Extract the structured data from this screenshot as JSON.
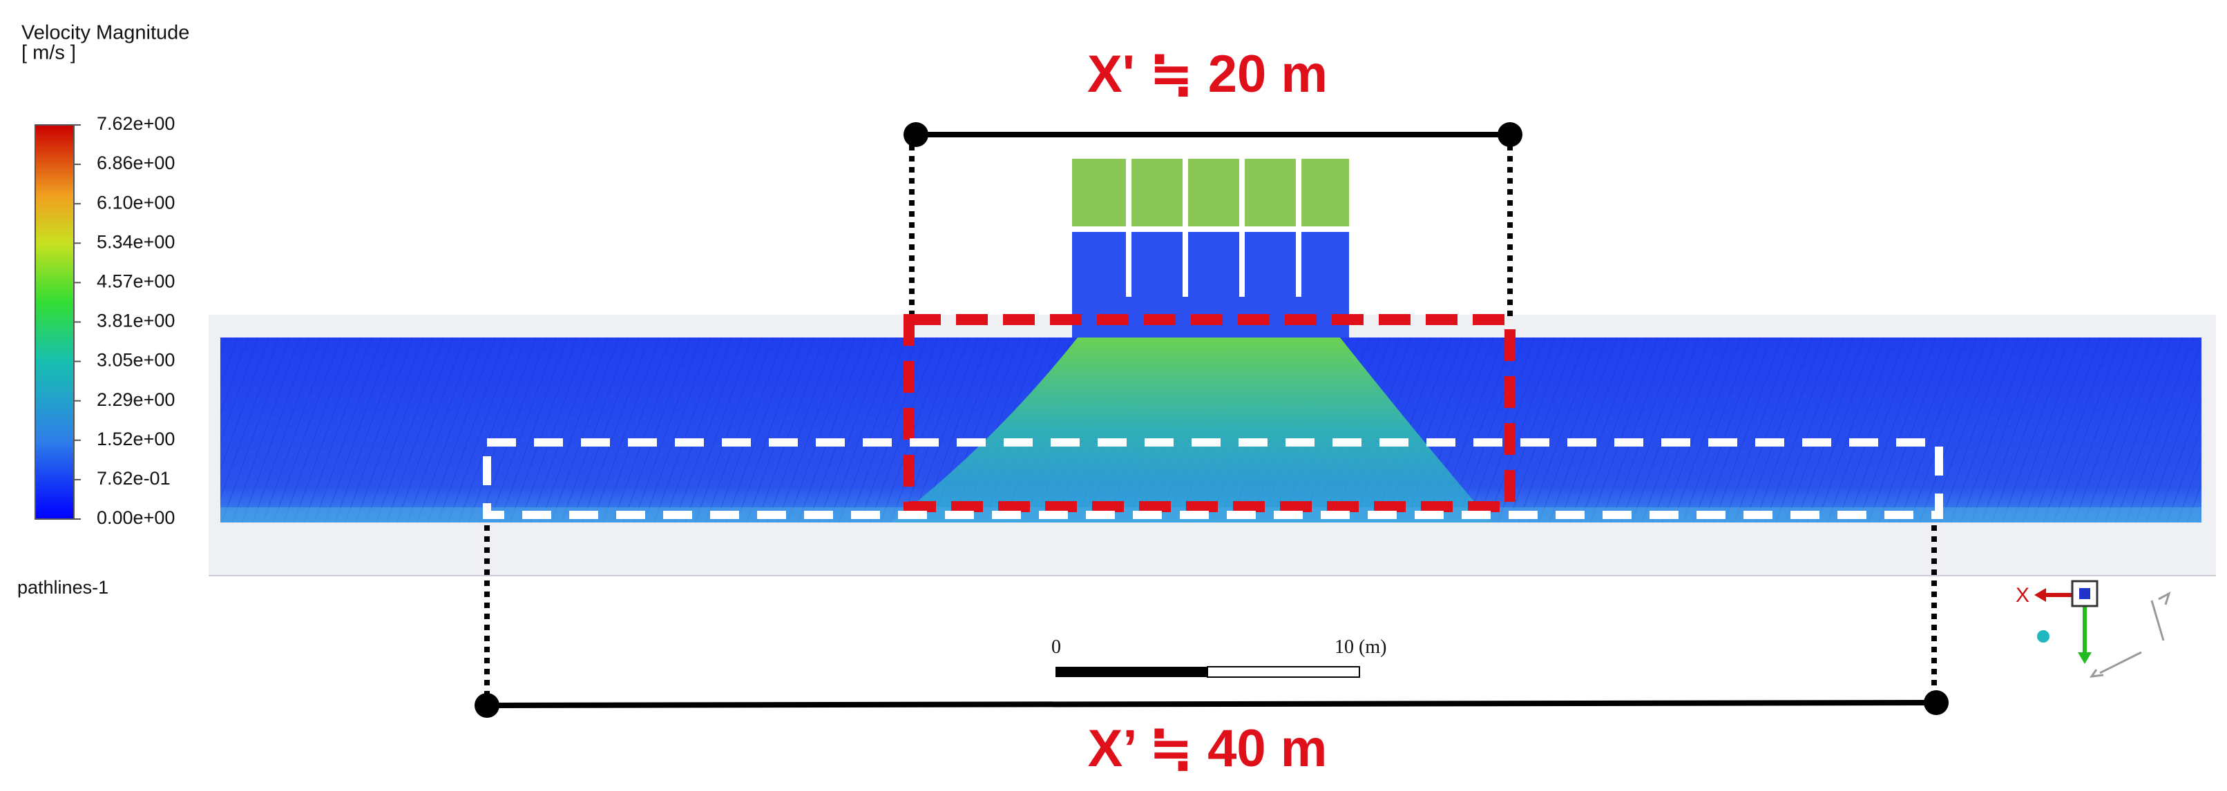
{
  "legend": {
    "title": "Velocity Magnitude",
    "unit": "[ m/s ]",
    "labels": [
      "7.62e+00",
      "6.86e+00",
      "6.10e+00",
      "5.34e+00",
      "4.57e+00",
      "3.81e+00",
      "3.05e+00",
      "2.29e+00",
      "1.52e+00",
      "7.62e-01",
      "0.00e+00"
    ]
  },
  "object_name": "pathlines-1",
  "annotations": {
    "top": "X' ≒ 20 m",
    "bottom": "X’  ≒ 40 m"
  },
  "scale_bar": {
    "start": "0",
    "end": "10 (m)"
  },
  "triad": {
    "x_label": "X"
  }
}
